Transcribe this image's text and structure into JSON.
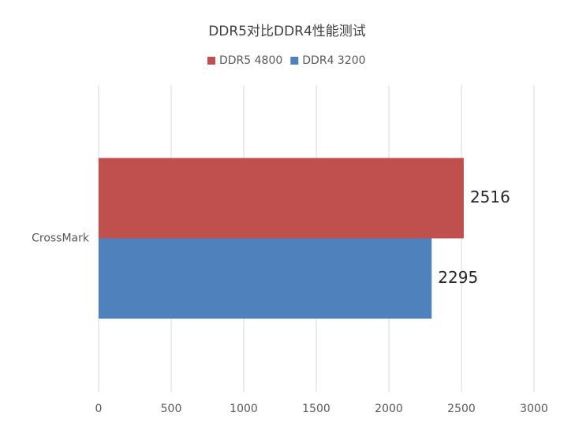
{
  "chart_data": {
    "type": "bar",
    "orientation": "horizontal",
    "title": "DDR5对比DDR4性能测试",
    "categories": [
      "CrossMark"
    ],
    "series": [
      {
        "name": "DDR5 4800",
        "color": "#c0504d",
        "values": [
          2516
        ]
      },
      {
        "name": "DDR4 3200",
        "color": "#4f81bd",
        "values": [
          2295
        ]
      }
    ],
    "xlim": [
      0,
      3000
    ],
    "xticks": [
      0,
      500,
      1000,
      1500,
      2000,
      2500,
      3000
    ],
    "grid": true,
    "legend": "top"
  }
}
